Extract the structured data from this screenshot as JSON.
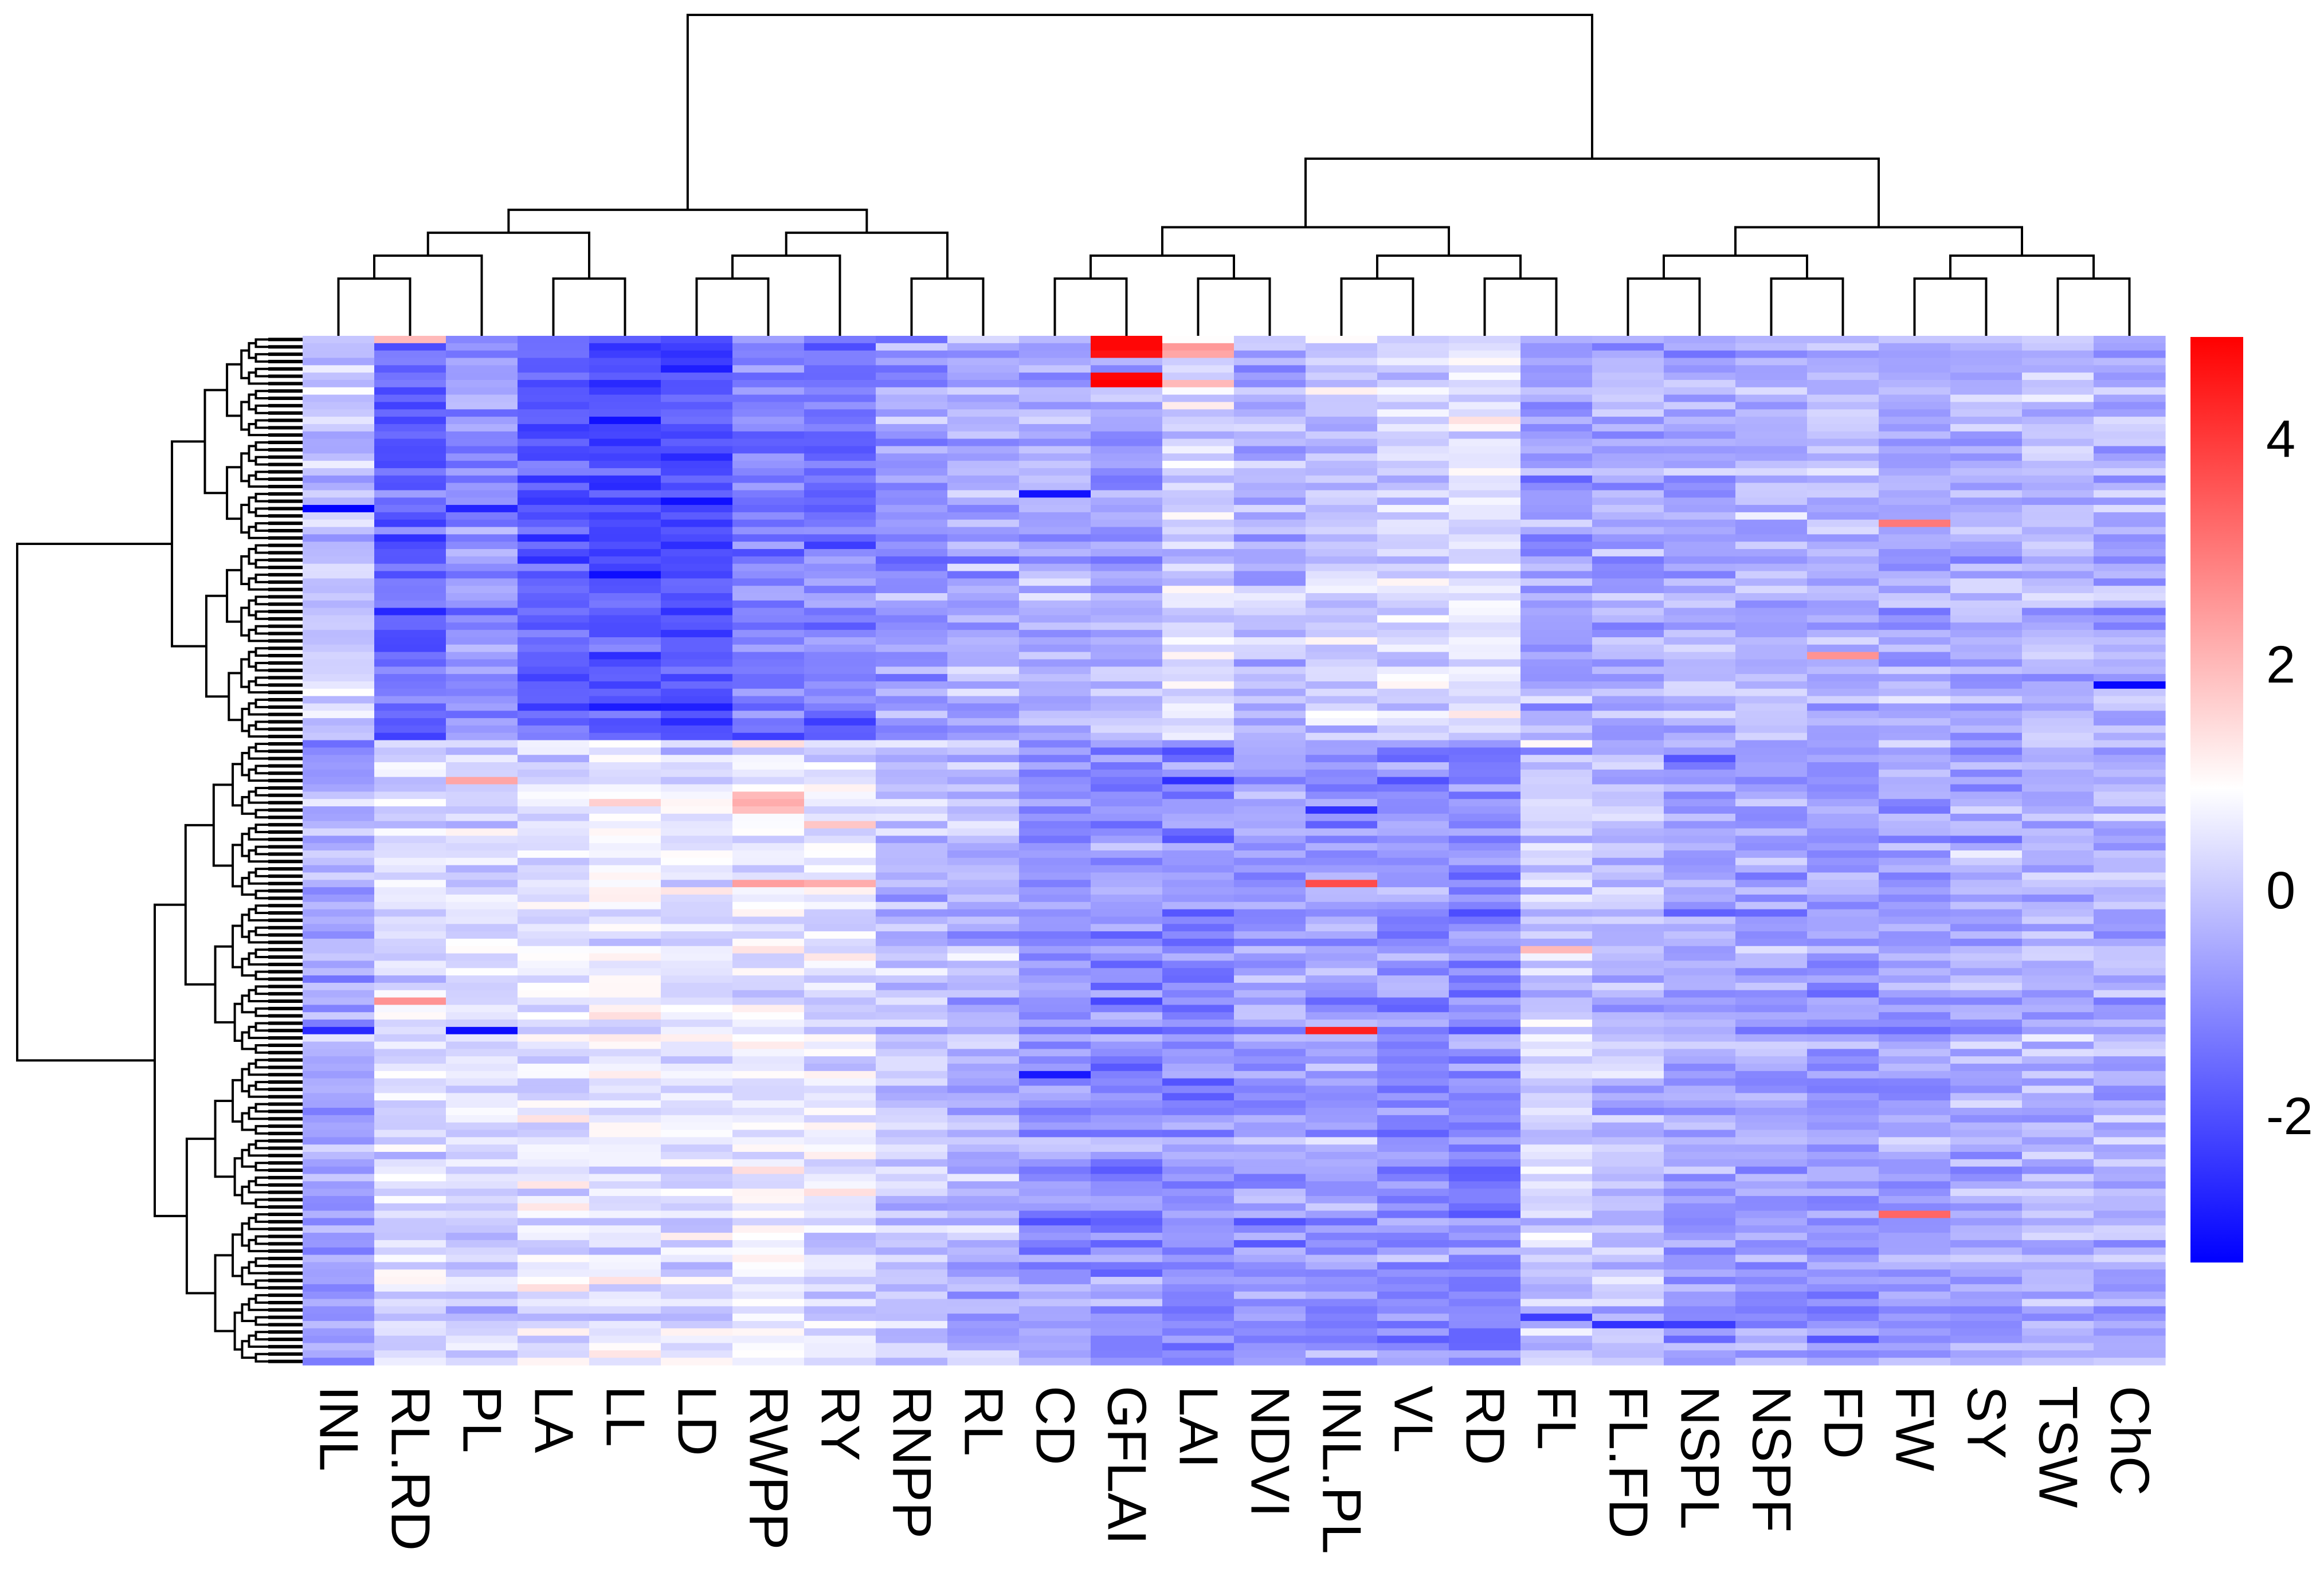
{
  "chart_data": {
    "type": "heatmap",
    "title": "",
    "xlabel": "",
    "ylabel": "",
    "columns": [
      "INL",
      "RL.RD",
      "PL",
      "LA",
      "LL",
      "LD",
      "RWPP",
      "RY",
      "RNPP",
      "RL",
      "CD",
      "GFLAI",
      "LAI",
      "NDVI",
      "INL.PL",
      "VL",
      "RD",
      "FL",
      "FL.FD",
      "NSPL",
      "NSPF",
      "FD",
      "FW",
      "SY",
      "TSW",
      "ChC"
    ],
    "row_count": 140,
    "row_clusters": [
      {
        "name": "upper cluster",
        "rows": 55
      },
      {
        "name": "lower cluster",
        "rows": 85
      }
    ],
    "cluster_means": [
      [
        0.0,
        -1.6,
        -0.9,
        -1.8,
        -2.0,
        -2.0,
        -1.3,
        -1.3,
        -0.8,
        -0.6,
        -0.4,
        -0.6,
        0.3,
        -0.3,
        0.0,
        0.1,
        0.4,
        -0.6,
        -0.5,
        -0.4,
        -0.3,
        -0.3,
        -0.5,
        -0.5,
        -0.2,
        -0.5
      ],
      [
        -0.6,
        0.3,
        0.2,
        0.5,
        0.6,
        0.4,
        0.6,
        0.5,
        -0.1,
        -0.2,
        -0.8,
        -0.9,
        -1.0,
        -0.7,
        -0.8,
        -0.9,
        -1.1,
        0.1,
        -0.2,
        -0.6,
        -0.6,
        -0.8,
        -0.7,
        -0.5,
        -0.4,
        -0.4
      ]
    ],
    "notable_cells": [
      {
        "row": 0,
        "column": "GFLAI",
        "value": 4.8
      },
      {
        "row": 1,
        "column": "GFLAI",
        "value": 4.8
      },
      {
        "row": 2,
        "column": "GFLAI",
        "value": 4.6
      },
      {
        "row": 5,
        "column": "GFLAI",
        "value": 4.8
      },
      {
        "row": 6,
        "column": "GFLAI",
        "value": 4.9
      },
      {
        "row": 1,
        "column": "LAI",
        "value": 2.5
      },
      {
        "row": 2,
        "column": "LAI",
        "value": 2.3
      },
      {
        "row": 6,
        "column": "LAI",
        "value": 2.0
      },
      {
        "row": 0,
        "column": "RL.RD",
        "value": 2.0
      },
      {
        "row": 62,
        "column": "RWPP",
        "value": 2.0
      },
      {
        "row": 63,
        "column": "RWPP",
        "value": 2.2
      },
      {
        "row": 64,
        "column": "RWPP",
        "value": 1.9
      },
      {
        "row": 66,
        "column": "RY",
        "value": 1.8
      },
      {
        "row": 74,
        "column": "RWPP",
        "value": 2.4
      },
      {
        "row": 74,
        "column": "RY",
        "value": 2.2
      },
      {
        "row": 74,
        "column": "INL.PL",
        "value": 3.7
      },
      {
        "row": 94,
        "column": "INL.PL",
        "value": 4.4
      },
      {
        "row": 90,
        "column": "RL.RD",
        "value": 2.6
      },
      {
        "row": 25,
        "column": "FW",
        "value": 3.0
      },
      {
        "row": 43,
        "column": "FD",
        "value": 2.6
      },
      {
        "row": 119,
        "column": "FW",
        "value": 3.3
      },
      {
        "row": 83,
        "column": "FL",
        "value": 2.0
      },
      {
        "row": 60,
        "column": "PL",
        "value": 2.3
      },
      {
        "row": 23,
        "column": "INL",
        "value": -3.3
      },
      {
        "row": 23,
        "column": "PL",
        "value": -2.7
      },
      {
        "row": 21,
        "column": "CD",
        "value": -3.0
      },
      {
        "row": 94,
        "column": "PL",
        "value": -3.1
      },
      {
        "row": 94,
        "column": "INL",
        "value": -2.6
      },
      {
        "row": 100,
        "column": "CD",
        "value": -2.9
      },
      {
        "row": 47,
        "column": "ChC",
        "value": -3.2
      },
      {
        "row": 64,
        "column": "INL.PL",
        "value": -2.5
      },
      {
        "row": 134,
        "column": "FL.FD",
        "value": -2.5
      },
      {
        "row": 133,
        "column": "FL",
        "value": -2.3
      },
      {
        "row": 134,
        "column": "NSPL",
        "value": -2.3
      }
    ],
    "value_range": [
      -3.3,
      4.9
    ],
    "colorscale": {
      "name": "blue-white-red",
      "min": -3.3,
      "mid": 0.9,
      "max": 4.9,
      "low_color": "#0000ff",
      "mid_color": "#ffffff",
      "high_color": "#ff0000"
    },
    "legend": {
      "ticks": [
        4,
        2,
        0,
        -2
      ],
      "tick_labels": [
        "4",
        "2",
        "0",
        "-2"
      ],
      "placement": "right"
    },
    "row_dendrogram": true,
    "column_dendrogram": true,
    "column_tree": [
      "INL-RL.RD-PL-LA-LL-LD",
      "RWPP-RY-RNPP-RL",
      "CD-GFLAI-LAI-NDVI-INL.PL-VL-RD",
      "FL-FL.FD-NSPL-NSPF-FD-FW-SY-TSW-ChC"
    ]
  }
}
